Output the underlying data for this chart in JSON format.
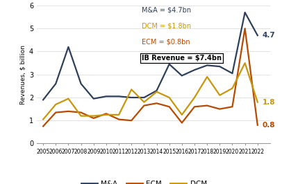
{
  "years": [
    2005,
    2006,
    2007,
    2008,
    2009,
    2010,
    2011,
    2012,
    2013,
    2014,
    2015,
    2016,
    2017,
    2018,
    2019,
    2020,
    2021,
    2022
  ],
  "ma": [
    1.9,
    2.6,
    4.2,
    2.6,
    1.95,
    2.05,
    2.05,
    2.0,
    2.0,
    2.3,
    3.45,
    2.95,
    3.2,
    3.4,
    3.35,
    3.05,
    5.7,
    4.7
  ],
  "ecm": [
    0.75,
    1.35,
    1.4,
    1.35,
    1.1,
    1.3,
    1.05,
    1.0,
    1.65,
    1.75,
    1.6,
    0.9,
    1.6,
    1.65,
    1.5,
    1.6,
    5.0,
    0.8
  ],
  "dcm": [
    1.05,
    1.7,
    1.95,
    1.2,
    1.2,
    1.25,
    1.25,
    2.35,
    1.8,
    2.25,
    2.0,
    1.25,
    2.0,
    2.9,
    2.1,
    2.4,
    3.5,
    1.8
  ],
  "ma_color": "#2e3f5c",
  "ecm_color": "#b84a00",
  "dcm_color": "#c9960a",
  "ylabel": "Revenues, $ billion",
  "ylim": [
    0,
    6
  ],
  "yticks": [
    0,
    1,
    2,
    3,
    4,
    5,
    6
  ],
  "annotation_ma": "4.7",
  "annotation_ecm": "0.8",
  "annotation_dcm": "1.8",
  "legend_text": [
    {
      "text": "M&A = $4.7bn",
      "color": "#2e3f5c",
      "bold": false
    },
    {
      "text": "DCM = $1.8bn",
      "color": "#c9960a",
      "bold": false
    },
    {
      "text": "ECM = $0.8bn",
      "color": "#b84a00",
      "bold": false
    },
    {
      "text": "IB Revenue = $7.4bn",
      "color": "#000000",
      "bold": true
    }
  ],
  "bg_color": "#ffffff"
}
